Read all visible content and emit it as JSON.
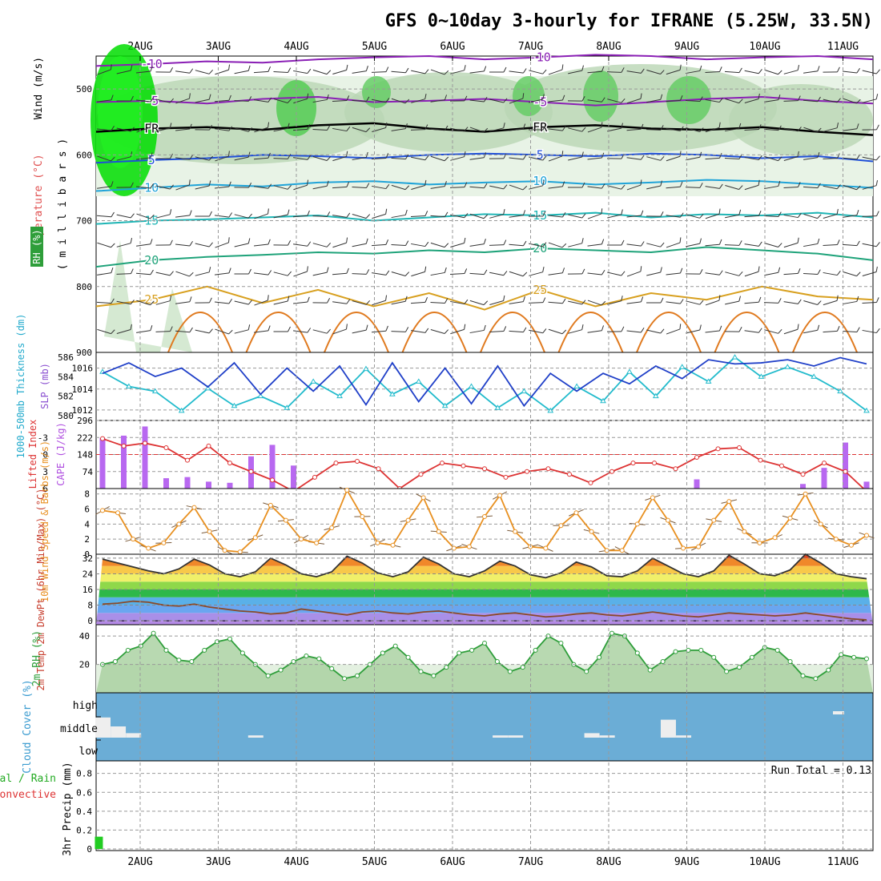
{
  "title": "GFS 0~10day 3-hourly for IFRANE (5.25W, 33.5N)",
  "date_labels": [
    "2AUG",
    "3AUG",
    "4AUG",
    "5AUG",
    "6AUG",
    "7AUG",
    "8AUG",
    "9AUG",
    "10AUG",
    "11AUG"
  ],
  "colors": {
    "grid": "#999999",
    "frame": "#000000",
    "rh": "#2e9e3a",
    "temp_line": "#000000",
    "precip": "#22cc22"
  },
  "panels": {
    "upper": {
      "ylabel_rh": "RH (%)",
      "ylabel_temp": "Temperature (°C)",
      "ylabel_wind": "Wind (m/s)",
      "ylabel_units": "( m i l l i b a r s )",
      "ticks": [
        "500",
        "600",
        "700",
        "800",
        "900"
      ],
      "freezing_label": "FR",
      "contours": [
        {
          "label": "-10",
          "color": "#8a1fb5",
          "values": [
            465,
            462,
            458,
            460,
            455,
            452,
            450,
            455,
            452,
            448,
            450,
            455,
            452,
            450,
            455
          ]
        },
        {
          "label": "-5",
          "color": "#8a1fb5",
          "values": [
            520,
            518,
            522,
            515,
            512,
            520,
            518,
            515,
            520,
            525,
            520,
            515,
            512,
            518,
            522
          ]
        },
        {
          "label": "FR",
          "color": "#000000",
          "values": [
            565,
            560,
            558,
            562,
            555,
            552,
            560,
            565,
            558,
            555,
            560,
            562,
            558,
            565,
            570
          ]
        },
        {
          "label": "5",
          "color": "#1f4fd8",
          "values": [
            612,
            608,
            605,
            600,
            602,
            605,
            600,
            598,
            600,
            602,
            598,
            600,
            605,
            602,
            610
          ]
        },
        {
          "label": "10",
          "color": "#1fa3d8",
          "values": [
            655,
            650,
            645,
            648,
            642,
            640,
            645,
            642,
            640,
            645,
            642,
            638,
            640,
            645,
            650
          ]
        },
        {
          "label": "15",
          "color": "#1fb5b5",
          "values": [
            705,
            700,
            698,
            695,
            692,
            700,
            695,
            690,
            692,
            688,
            695,
            690,
            692,
            688,
            695
          ]
        },
        {
          "label": "20",
          "color": "#1fa37a",
          "values": [
            770,
            760,
            755,
            752,
            748,
            750,
            745,
            748,
            742,
            745,
            748,
            740,
            745,
            750,
            760
          ]
        },
        {
          "label": "25",
          "color": "#d8a01f",
          "values": [
            830,
            820,
            800,
            825,
            805,
            830,
            810,
            835,
            805,
            830,
            810,
            820,
            800,
            815,
            820
          ]
        }
      ]
    },
    "pressure": {
      "ylabel_thick": "1000-500mb Thickness (dm)",
      "ylabel_slp": "SLP (mb)",
      "thick_ticks": [
        "586",
        "584",
        "582",
        "580"
      ],
      "slp_ticks": [
        "1016",
        "1014",
        "1012"
      ],
      "slp": [
        1015.5,
        1016.5,
        1015.2,
        1016.0,
        1014.2,
        1016.5,
        1013.5,
        1016.0,
        1013.8,
        1016.2,
        1012.5,
        1016.5,
        1012.8,
        1016.0,
        1012.6,
        1016.2,
        1012.4,
        1015.5,
        1013.8,
        1015.5,
        1014.5,
        1016.2,
        1015.0,
        1016.8,
        1016.4,
        1016.5,
        1016.8,
        1016.2,
        1017.0,
        1016.4
      ],
      "thickness": [
        584.5,
        583.0,
        582.5,
        580.5,
        582.8,
        581.0,
        582.0,
        580.8,
        583.5,
        582.0,
        584.8,
        582.2,
        583.5,
        581.0,
        583.0,
        580.8,
        582.5,
        580.5,
        583.0,
        581.5,
        584.5,
        582.0,
        585.0,
        583.5,
        586.0,
        584.0,
        585.0,
        584.0,
        582.5,
        580.5
      ]
    },
    "stability": {
      "ylabel_li": "Lifted Index",
      "ylabel_cape": "CAPE (J/kg)",
      "li_ticks": [
        "-3",
        "0",
        "3",
        "6"
      ],
      "cape_ticks": [
        "296",
        "222",
        "148",
        "74"
      ],
      "li": [
        -2.8,
        -1.5,
        -2.0,
        -1.2,
        1.0,
        -1.5,
        1.5,
        3.0,
        4.5,
        6.5,
        4.0,
        1.5,
        1.2,
        2.5,
        6.0,
        3.5,
        1.5,
        2.0,
        2.5,
        4.0,
        3.0,
        2.5,
        3.5,
        5.0,
        3.0,
        1.5,
        1.5,
        2.5,
        0.5,
        -1.0,
        -1.2,
        1.0,
        2.0,
        3.5,
        1.5,
        3.0,
        6.5
      ],
      "cape": [
        220,
        230,
        270,
        45,
        50,
        30,
        25,
        140,
        190,
        100,
        0,
        0,
        0,
        0,
        0,
        0,
        0,
        0,
        0,
        0,
        0,
        0,
        0,
        0,
        0,
        0,
        0,
        0,
        40,
        0,
        0,
        0,
        0,
        20,
        90,
        200,
        30
      ]
    },
    "wind10m": {
      "ylabel": "10m Wind Speed & Barbs (m/s)",
      "ticks": [
        "8",
        "6",
        "4",
        "2",
        "0"
      ],
      "speed": [
        5.8,
        5.5,
        2.0,
        0.8,
        1.5,
        4.0,
        6.2,
        3.0,
        0.5,
        0.3,
        2.2,
        6.5,
        4.5,
        2.0,
        1.5,
        3.5,
        8.5,
        5.0,
        1.5,
        1.2,
        4.5,
        7.5,
        3.0,
        0.8,
        1.0,
        5.0,
        7.8,
        3.0,
        1.0,
        0.8,
        3.8,
        5.5,
        3.0,
        0.5,
        0.5,
        4.0,
        7.5,
        4.5,
        0.8,
        1.0,
        4.5,
        7.0,
        3.0,
        1.5,
        2.2,
        4.8,
        8.0,
        4.0,
        2.0,
        1.2,
        2.5
      ]
    },
    "temperature": {
      "ylabel": "2m Temp 2m DewPt (6hr Min/Max) (°C)",
      "ticks": [
        "32",
        "24",
        "16",
        "8",
        "0"
      ],
      "temp": [
        31.5,
        29.5,
        27.5,
        25.5,
        24.0,
        26.5,
        31.5,
        28.5,
        24.0,
        22.5,
        25.0,
        32.0,
        28.5,
        24.0,
        22.5,
        25.0,
        33.0,
        29.5,
        24.5,
        22.5,
        25.0,
        32.5,
        29.0,
        24.0,
        22.5,
        25.5,
        30.5,
        28.0,
        23.5,
        22.0,
        24.5,
        30.0,
        27.5,
        23.0,
        22.5,
        25.5,
        32.0,
        28.0,
        24.0,
        22.5,
        25.5,
        33.5,
        29.0,
        24.0,
        23.0,
        26.0,
        34.0,
        29.5,
        24.0,
        22.5,
        21.5
      ],
      "dewpt": [
        8.5,
        9.0,
        10.0,
        9.5,
        8.0,
        7.5,
        8.5,
        7.0,
        6.0,
        5.0,
        4.5,
        3.5,
        4.0,
        6.0,
        5.0,
        4.0,
        3.0,
        4.5,
        5.0,
        4.0,
        3.5,
        4.5,
        5.0,
        4.0,
        3.0,
        2.5,
        3.5,
        4.0,
        3.0,
        2.0,
        2.5,
        3.5,
        4.0,
        3.0,
        2.5,
        3.5,
        4.5,
        3.5,
        2.5,
        2.0,
        3.0,
        4.0,
        3.5,
        3.0,
        2.5,
        3.0,
        4.0,
        3.0,
        2.0,
        1.0,
        0.5
      ]
    },
    "rh2m": {
      "ylabel": "2m RH (%)",
      "ticks": [
        "40",
        "20"
      ],
      "values": [
        20,
        22,
        30,
        33,
        42,
        30,
        23,
        22,
        30,
        36,
        38,
        28,
        20,
        12,
        16,
        22,
        26,
        24,
        17,
        10,
        12,
        20,
        28,
        33,
        25,
        15,
        12,
        18,
        28,
        30,
        35,
        22,
        15,
        18,
        30,
        40,
        35,
        20,
        15,
        25,
        42,
        40,
        28,
        16,
        22,
        29,
        30,
        30,
        25,
        15,
        18,
        25,
        32,
        30,
        22,
        12,
        10,
        16,
        27,
        25,
        24
      ]
    },
    "cloud": {
      "ylabel": "Cloud Cover (%)",
      "levels": [
        "high",
        "middle",
        "low"
      ],
      "middle_cover": [
        0.9,
        0.5,
        0.2,
        0,
        0,
        0,
        0,
        0,
        0,
        0,
        0.1,
        0,
        0,
        0,
        0,
        0,
        0,
        0,
        0,
        0,
        0,
        0,
        0,
        0,
        0,
        0,
        0.1,
        0.1,
        0,
        0,
        0,
        0,
        0.2,
        0.1,
        0,
        0,
        0,
        0.8,
        0.1,
        0,
        0,
        0,
        0,
        0,
        0,
        0,
        0,
        0,
        0,
        0,
        0
      ],
      "high_cover_label": "high"
    },
    "precip": {
      "ylabel_total": "Total / Rain",
      "ylabel_conv": "Convective",
      "ylabel": "3hr Precip (mm)",
      "ticks": [
        "0.8",
        "0.6",
        "0.4",
        "0.2",
        "0"
      ],
      "run_total": "Run Total = 0.13",
      "bars": [
        {
          "day_offset": 0.42,
          "value": 0.13
        }
      ]
    }
  }
}
